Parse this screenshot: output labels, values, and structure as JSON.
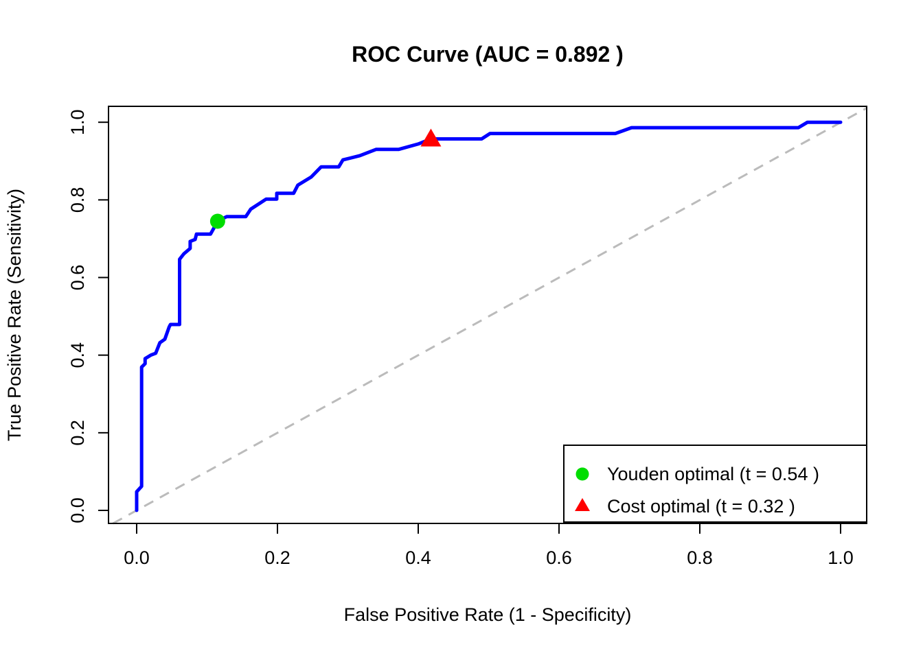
{
  "chart_data": {
    "type": "line",
    "title": "ROC Curve (AUC = 0.892 )",
    "auc": 0.892,
    "xlabel": "False Positive Rate (1 - Specificity)",
    "ylabel": "True Positive Rate (Sensitivity)",
    "xlim": [
      0,
      1
    ],
    "ylim": [
      0,
      1
    ],
    "grid": false,
    "x_ticks": {
      "values": [
        0,
        0.2,
        0.4,
        0.6,
        0.8,
        1.0
      ],
      "labels": [
        "0.0",
        "0.2",
        "0.4",
        "0.6",
        "0.8",
        "1.0"
      ]
    },
    "y_ticks": {
      "values": [
        0,
        0.2,
        0.4,
        0.6,
        0.8,
        1.0
      ],
      "labels": [
        "0.0",
        "0.2",
        "0.4",
        "0.6",
        "0.8",
        "1.0"
      ]
    },
    "series": [
      {
        "name": "ROC curve",
        "type": "line",
        "color": "#0000FF",
        "line_width": 5,
        "style": "solid",
        "points": [
          [
            0,
            0
          ],
          [
            0,
            0.048
          ],
          [
            0.007,
            0.062
          ],
          [
            0.007,
            0.369
          ],
          [
            0.012,
            0.378
          ],
          [
            0.012,
            0.391
          ],
          [
            0.02,
            0.4
          ],
          [
            0.027,
            0.405
          ],
          [
            0.033,
            0.432
          ],
          [
            0.04,
            0.441
          ],
          [
            0.046,
            0.472
          ],
          [
            0.048,
            0.479
          ],
          [
            0.061,
            0.479
          ],
          [
            0.061,
            0.647
          ],
          [
            0.067,
            0.661
          ],
          [
            0.076,
            0.675
          ],
          [
            0.076,
            0.693
          ],
          [
            0.083,
            0.698
          ],
          [
            0.085,
            0.712
          ],
          [
            0.105,
            0.712
          ],
          [
            0.115,
            0.745
          ],
          [
            0.128,
            0.757
          ],
          [
            0.155,
            0.757
          ],
          [
            0.162,
            0.776
          ],
          [
            0.184,
            0.802
          ],
          [
            0.199,
            0.802
          ],
          [
            0.199,
            0.817
          ],
          [
            0.223,
            0.817
          ],
          [
            0.229,
            0.838
          ],
          [
            0.248,
            0.859
          ],
          [
            0.262,
            0.885
          ],
          [
            0.287,
            0.885
          ],
          [
            0.293,
            0.903
          ],
          [
            0.317,
            0.914
          ],
          [
            0.34,
            0.93
          ],
          [
            0.372,
            0.93
          ],
          [
            0.4,
            0.944
          ],
          [
            0.418,
            0.957
          ],
          [
            0.49,
            0.957
          ],
          [
            0.502,
            0.971
          ],
          [
            0.68,
            0.971
          ],
          [
            0.703,
            0.986
          ],
          [
            0.94,
            0.986
          ],
          [
            0.953,
            1
          ],
          [
            1,
            1
          ]
        ]
      },
      {
        "name": "Chance diagonal (y = x)",
        "type": "line",
        "color": "#BBBBBB",
        "line_width": 3,
        "style": "dashed",
        "points": [
          [
            0,
            0
          ],
          [
            1,
            1
          ]
        ]
      }
    ],
    "markers": [
      {
        "name": "Youden optimal",
        "shape": "circle",
        "color": "#00DD00",
        "fpr": 0.115,
        "tpr": 0.745,
        "threshold": 0.54
      },
      {
        "name": "Cost optimal",
        "shape": "triangle",
        "color": "#FF0000",
        "fpr": 0.418,
        "tpr": 0.957,
        "threshold": 0.32
      }
    ],
    "legend": {
      "position": "bottomright",
      "entries": [
        {
          "marker": "circle",
          "color": "#00DD00",
          "label": "Youden optimal (t = 0.54 )"
        },
        {
          "marker": "triangle",
          "color": "#FF0000",
          "label": "Cost optimal (t = 0.32 )"
        }
      ]
    }
  }
}
